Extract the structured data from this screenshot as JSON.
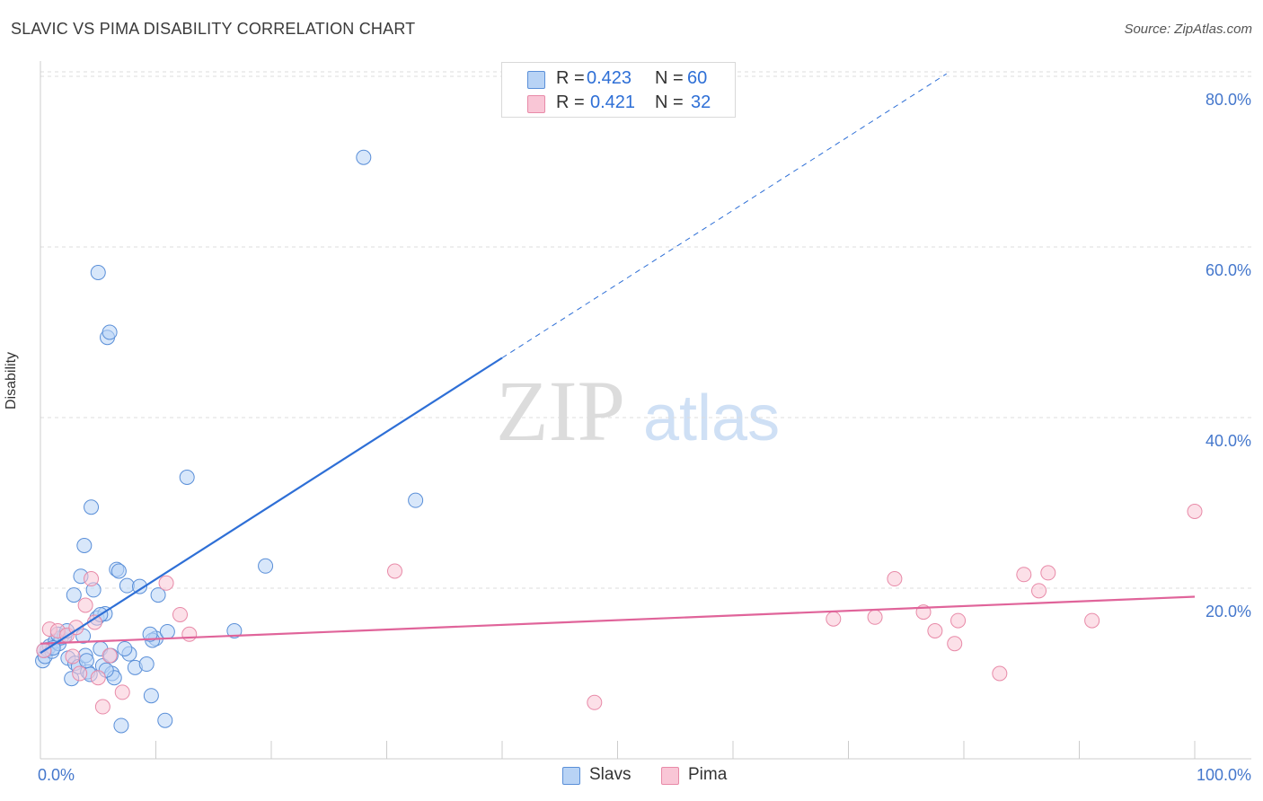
{
  "title": "SLAVIC VS PIMA DISABILITY CORRELATION CHART",
  "source": "Source: ZipAtlas.com",
  "watermark": {
    "zip": "ZIP",
    "atlas": "atlas"
  },
  "legend": {
    "slavs": {
      "r_label": "R =",
      "r_value": "0.423",
      "n_label": "N =",
      "n_value": "60"
    },
    "pima": {
      "r_label": "R =",
      "r_value": "0.421",
      "n_label": "N =",
      "n_value": "32"
    }
  },
  "colors": {
    "slavs_fill": "#b8d3f5",
    "slavs_stroke": "#5a8fd8",
    "slavs_line": "#2e6fd6",
    "pima_fill": "#f9c6d6",
    "pima_stroke": "#e88aa8",
    "pima_line": "#e0649a",
    "axis_text": "#4477cc",
    "grid": "#dddddd"
  },
  "chart_data": {
    "type": "scatter",
    "title": "SLAVIC VS PIMA DISABILITY CORRELATION CHART",
    "xlabel": "",
    "ylabel": "Disability",
    "xlim": [
      0,
      100
    ],
    "ylim": [
      0,
      80
    ],
    "x_tick_labels": [
      "0.0%",
      "100.0%"
    ],
    "y_ticks": [
      20,
      40,
      60,
      80
    ],
    "y_tick_labels": [
      "20.0%",
      "40.0%",
      "60.0%",
      "80.0%"
    ],
    "series": [
      {
        "name": "Slavs",
        "r": 0.423,
        "n": 60,
        "trend": {
          "x0": 0,
          "y0": 12.4,
          "x1": 40,
          "y1": 47.0,
          "dashed_to_x": 78.5,
          "dashed_to_y": 80.3
        },
        "points": [
          [
            0.2,
            11.5
          ],
          [
            0.4,
            12.0
          ],
          [
            0.6,
            12.8
          ],
          [
            0.8,
            13.2
          ],
          [
            1.0,
            12.6
          ],
          [
            1.3,
            13.8
          ],
          [
            1.6,
            13.5
          ],
          [
            1.8,
            14.2
          ],
          [
            2.1,
            14.4
          ],
          [
            2.4,
            11.8
          ],
          [
            2.7,
            9.4
          ],
          [
            3.0,
            11.2
          ],
          [
            3.3,
            10.8
          ],
          [
            3.5,
            21.4
          ],
          [
            3.7,
            14.4
          ],
          [
            3.9,
            12.1
          ],
          [
            4.1,
            10.2
          ],
          [
            4.3,
            9.9
          ],
          [
            4.4,
            29.5
          ],
          [
            4.6,
            19.8
          ],
          [
            4.9,
            16.5
          ],
          [
            5.0,
            57.0
          ],
          [
            5.2,
            12.9
          ],
          [
            5.4,
            10.9
          ],
          [
            5.6,
            17.0
          ],
          [
            5.8,
            49.4
          ],
          [
            6.0,
            50.0
          ],
          [
            6.2,
            10.0
          ],
          [
            6.4,
            9.5
          ],
          [
            6.6,
            22.2
          ],
          [
            6.8,
            22.0
          ],
          [
            7.0,
            3.9
          ],
          [
            7.5,
            20.3
          ],
          [
            7.7,
            12.3
          ],
          [
            8.2,
            10.7
          ],
          [
            8.6,
            20.2
          ],
          [
            9.2,
            11.1
          ],
          [
            9.6,
            7.4
          ],
          [
            10.0,
            14.1
          ],
          [
            10.2,
            19.2
          ],
          [
            10.8,
            4.5
          ],
          [
            12.7,
            33.0
          ],
          [
            16.8,
            15.0
          ],
          [
            19.5,
            22.6
          ],
          [
            28.0,
            70.5
          ],
          [
            32.5,
            30.3
          ],
          [
            6.1,
            12.1
          ],
          [
            3.8,
            25.0
          ],
          [
            2.9,
            19.2
          ],
          [
            9.7,
            13.9
          ],
          [
            11.0,
            14.9
          ],
          [
            4.0,
            11.5
          ],
          [
            1.1,
            13.0
          ],
          [
            1.5,
            14.6
          ],
          [
            5.7,
            10.4
          ],
          [
            0.3,
            12.7
          ],
          [
            2.3,
            15.0
          ],
          [
            7.3,
            12.9
          ],
          [
            5.2,
            16.9
          ],
          [
            9.5,
            14.6
          ]
        ]
      },
      {
        "name": "Pima",
        "r": 0.421,
        "n": 32,
        "trend": {
          "x0": 0,
          "y0": 13.5,
          "x1": 100,
          "y1": 19.0
        },
        "points": [
          [
            0.3,
            12.7
          ],
          [
            0.8,
            15.2
          ],
          [
            1.5,
            15.0
          ],
          [
            2.3,
            14.5
          ],
          [
            2.8,
            12.0
          ],
          [
            3.1,
            15.4
          ],
          [
            3.4,
            10.0
          ],
          [
            3.9,
            18.0
          ],
          [
            4.4,
            21.1
          ],
          [
            5.0,
            9.5
          ],
          [
            5.4,
            6.1
          ],
          [
            6.0,
            12.1
          ],
          [
            7.1,
            7.8
          ],
          [
            10.9,
            20.6
          ],
          [
            12.1,
            16.9
          ],
          [
            12.9,
            14.6
          ],
          [
            30.7,
            22.0
          ],
          [
            48.0,
            6.6
          ],
          [
            68.7,
            16.4
          ],
          [
            72.3,
            16.6
          ],
          [
            74.0,
            21.1
          ],
          [
            76.5,
            17.2
          ],
          [
            77.5,
            15.0
          ],
          [
            79.2,
            13.5
          ],
          [
            79.5,
            16.2
          ],
          [
            83.1,
            10.0
          ],
          [
            85.2,
            21.6
          ],
          [
            86.5,
            19.7
          ],
          [
            87.3,
            21.8
          ],
          [
            91.1,
            16.2
          ],
          [
            100.0,
            29.0
          ],
          [
            4.7,
            16.0
          ]
        ]
      }
    ]
  },
  "bottom_legend": {
    "slavs": "Slavs",
    "pima": "Pima"
  }
}
